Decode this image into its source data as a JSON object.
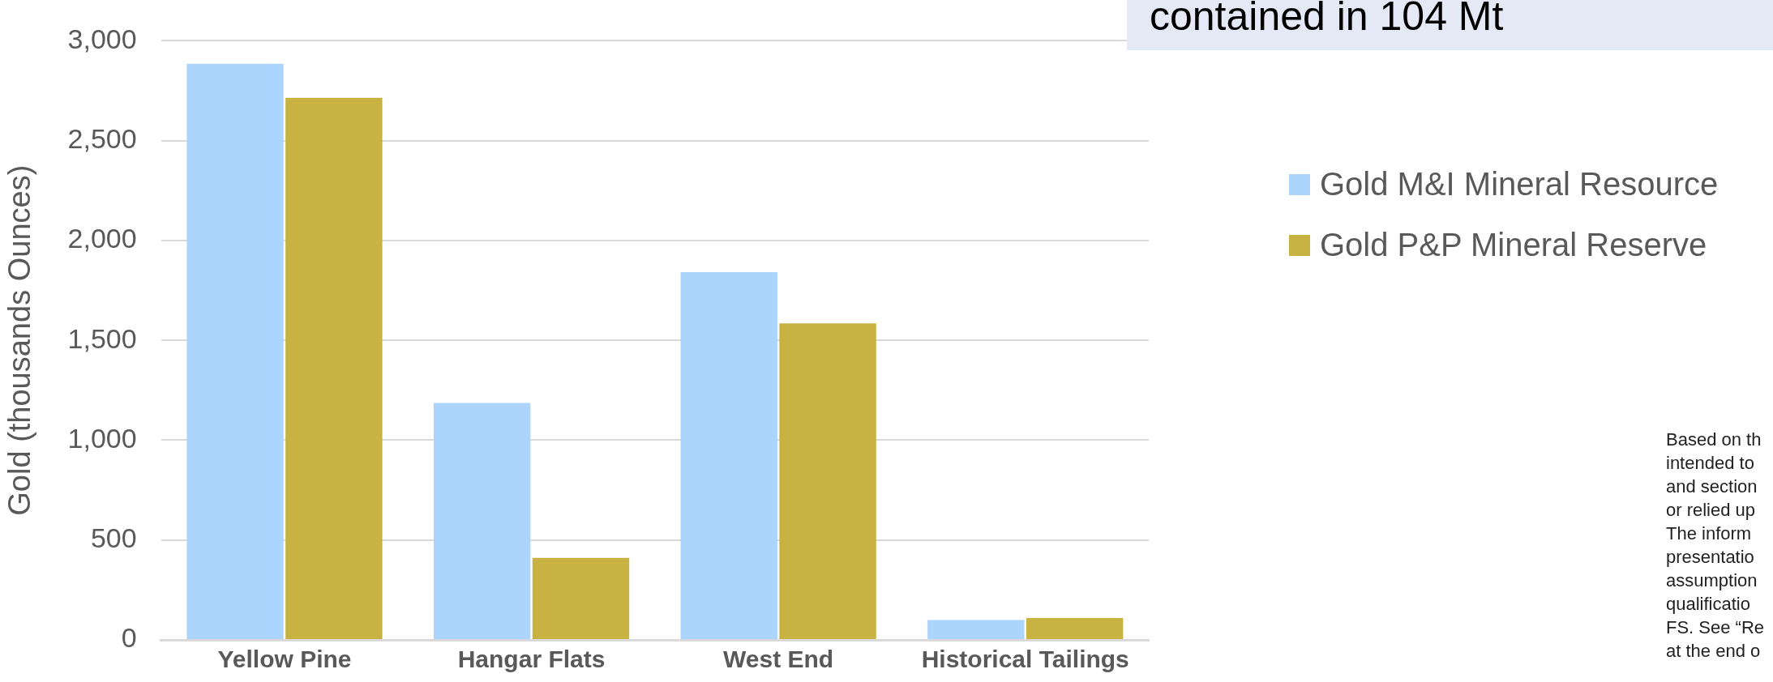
{
  "chart_data": {
    "type": "bar",
    "ylabel": "Gold (thousands Ounces)",
    "categories": [
      "Yellow Pine",
      "Hangar Flats",
      "West End",
      "Historical Tailings"
    ],
    "series": [
      {
        "name": "Gold M&I Mineral Resource",
        "color": "#acd5fd",
        "values": [
          2885,
          1186,
          1842,
          99
        ]
      },
      {
        "name": "Gold P&P Mineral Reserve",
        "color": "#c8b242",
        "values": [
          2715,
          411,
          1585,
          110
        ]
      }
    ],
    "ylim": [
      0,
      3000
    ],
    "yticks": [
      {
        "value": 0,
        "label": "0"
      },
      {
        "value": 500,
        "label": "500"
      },
      {
        "value": 1000,
        "label": "1,000"
      },
      {
        "value": 1500,
        "label": "1,500"
      },
      {
        "value": 2000,
        "label": "2,000"
      },
      {
        "value": 2500,
        "label": "2,500"
      },
      {
        "value": 3000,
        "label": "3,000"
      }
    ],
    "grid": "y",
    "legend": "right",
    "annotations": [
      "contained in 104 Mt",
      "Based on th\nintended to\nand section\nor relied up\nThe inform\npresentatio\nassumption\nqualificatio\nFS. See “Re\nat the end o"
    ]
  }
}
